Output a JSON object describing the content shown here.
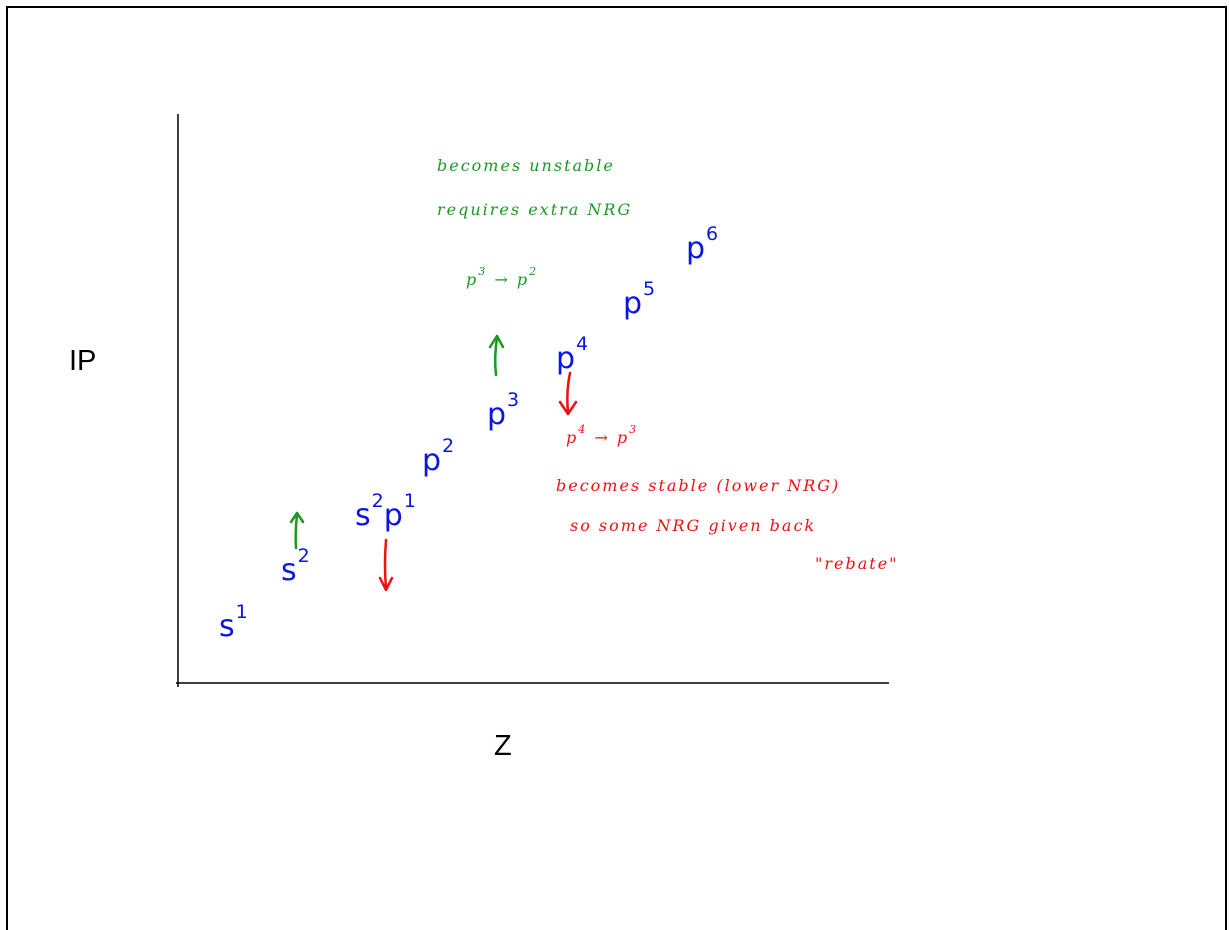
{
  "axes": {
    "y_label": "IP",
    "x_label": "Z"
  },
  "configurations": [
    {
      "base": "s",
      "sup": "1"
    },
    {
      "base": "s",
      "sup": "2"
    },
    {
      "base": "s",
      "sup": "2",
      "base2": "p",
      "sup2": "1"
    },
    {
      "base": "p",
      "sup": "2"
    },
    {
      "base": "p",
      "sup": "3"
    },
    {
      "base": "p",
      "sup": "4"
    },
    {
      "base": "p",
      "sup": "5"
    },
    {
      "base": "p",
      "sup": "6"
    }
  ],
  "notes": {
    "green": {
      "line1": "becomes unstable",
      "line2": "requires extra NRG",
      "transition": {
        "from_base": "p",
        "from_sup": "3",
        "arrow": "→",
        "to_base": "p",
        "to_sup": "2"
      }
    },
    "red": {
      "transition": {
        "from_base": "p",
        "from_sup": "4",
        "arrow": "→",
        "to_base": "p",
        "to_sup": "3"
      },
      "line1": "becomes stable (lower NRG)",
      "line2": "so some NRG given back",
      "line3": "\"rebate\""
    }
  },
  "colors": {
    "configuration": "#0a14e6",
    "increase": "#1a9a22",
    "decrease": "#ee1111",
    "axis": "#000000"
  }
}
